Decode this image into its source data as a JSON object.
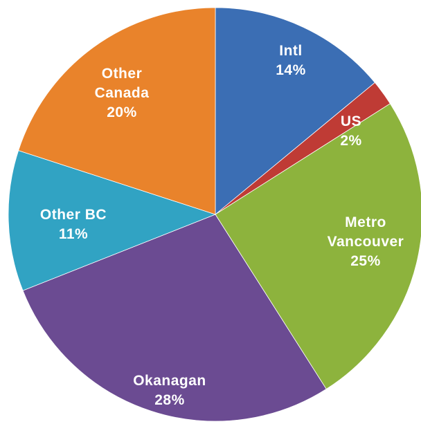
{
  "chart_data": {
    "type": "pie",
    "categories": [
      "Intl",
      "US",
      "Metro Vancouver",
      "Okanagan",
      "Other BC",
      "Other Canada"
    ],
    "values": [
      14,
      2,
      25,
      28,
      11,
      20
    ],
    "value_labels": [
      "14%",
      "2%",
      "25%",
      "28%",
      "11%",
      "20%"
    ],
    "colors": [
      "#3b6eb4",
      "#bf3b35",
      "#8db33d",
      "#6b4b92",
      "#31a3c3",
      "#e9832b"
    ]
  }
}
